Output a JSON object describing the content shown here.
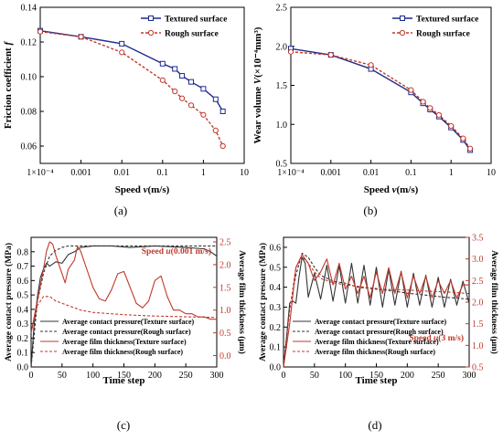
{
  "colors": {
    "textured": "#1f2a8c",
    "rough": "#c0392b",
    "pressure_texture": "#333333",
    "pressure_rough": "#333333",
    "film": "#c0392b"
  },
  "chart_data": [
    {
      "panel": "(a)",
      "type": "line",
      "xlabel_pre": "Speed ",
      "xlabel_var": "v",
      "xlabel_post": "(m/s)",
      "ylabel_pre": "Friction coefficient ",
      "ylabel_var": "f",
      "xscale": "log",
      "xlim": [
        0.0001,
        10
      ],
      "ylim": [
        0.05,
        0.14
      ],
      "xticks": [
        0.0001,
        0.001,
        0.01,
        0.1,
        1,
        10
      ],
      "xticklabels": [
        "1×10⁻⁴",
        "0.001",
        "0.01",
        "0.1",
        "1",
        "10"
      ],
      "yticks": [
        0.06,
        0.08,
        0.1,
        0.12,
        0.14
      ],
      "yticklabels": [
        "0.06",
        "0.08",
        "0.10",
        "0.12",
        "0.14"
      ],
      "legend_position": "top-right",
      "series": [
        {
          "name": "Textured surface",
          "style": "solid",
          "marker": "square",
          "x": [
            0.0001,
            0.001,
            0.01,
            0.1,
            0.2,
            0.3,
            0.5,
            1,
            2,
            3
          ],
          "y": [
            0.1265,
            0.123,
            0.119,
            0.1075,
            0.1045,
            0.1005,
            0.097,
            0.093,
            0.087,
            0.08
          ]
        },
        {
          "name": "Rough surface",
          "style": "dashed",
          "marker": "circle",
          "x": [
            0.0001,
            0.001,
            0.01,
            0.1,
            0.2,
            0.3,
            0.5,
            1,
            2,
            3
          ],
          "y": [
            0.126,
            0.123,
            0.114,
            0.098,
            0.0915,
            0.0875,
            0.0835,
            0.078,
            0.069,
            0.06
          ]
        }
      ]
    },
    {
      "panel": "(b)",
      "type": "line",
      "xlabel_pre": "Speed  ",
      "xlabel_var": "v",
      "xlabel_post": "(m/s)",
      "ylabel_pre": "Wear volume ",
      "ylabel_var": "V",
      "ylabel_post": "(×10⁻⁴mm³)",
      "xscale": "log",
      "xlim": [
        0.0001,
        10
      ],
      "ylim": [
        0.5,
        2.5
      ],
      "xticks": [
        0.0001,
        0.001,
        0.01,
        0.1,
        1,
        10
      ],
      "xticklabels": [
        "1×10⁻⁴",
        "0.001",
        "0.01",
        "0.1",
        "1",
        "10"
      ],
      "yticks": [
        0.5,
        1.0,
        1.5,
        2.0,
        2.5
      ],
      "yticklabels": [
        "0.5",
        "1.0",
        "1.5",
        "2.0",
        "2.5"
      ],
      "legend_position": "top-right",
      "series": [
        {
          "name": "Textured surface",
          "style": "solid",
          "marker": "square",
          "x": [
            0.0001,
            0.001,
            0.01,
            0.1,
            0.2,
            0.3,
            0.5,
            1,
            2,
            3
          ],
          "y": [
            1.97,
            1.89,
            1.71,
            1.41,
            1.27,
            1.19,
            1.1,
            0.96,
            0.8,
            0.67
          ]
        },
        {
          "name": "Rough surface",
          "style": "dashed",
          "marker": "circle",
          "x": [
            0.0001,
            0.001,
            0.01,
            0.1,
            0.2,
            0.3,
            0.5,
            1,
            2,
            3
          ],
          "y": [
            1.93,
            1.89,
            1.76,
            1.44,
            1.29,
            1.21,
            1.12,
            0.98,
            0.82,
            0.69
          ]
        }
      ]
    },
    {
      "panel": "(c)",
      "type": "line",
      "annotation_pre": "Speed ",
      "annotation_var": "u",
      "annotation_post": "(0.001 m/s)",
      "xlabel": "Time step",
      "ylabel": "Average contact pressure (MPa)",
      "ylabel2": "Average film thickness (μm)",
      "xlim": [
        0,
        300
      ],
      "ylim": [
        0,
        0.9
      ],
      "y2lim": [
        -0.25,
        2.6
      ],
      "xticks": [
        0,
        50,
        100,
        150,
        200,
        250,
        300
      ],
      "xticklabels": [
        "0",
        "50",
        "100",
        "150",
        "200",
        "250",
        "300"
      ],
      "yticks": [
        0.0,
        0.1,
        0.2,
        0.3,
        0.4,
        0.5,
        0.6,
        0.7,
        0.8
      ],
      "yticklabels": [
        "0.0",
        "0.1",
        "0.2",
        "0.3",
        "0.4",
        "0.5",
        "0.6",
        "0.7",
        "0.8"
      ],
      "y2ticks": [
        0.0,
        0.5,
        1.0,
        1.5,
        2.0,
        2.5
      ],
      "y2ticklabels": [
        "0.0",
        "0.5",
        "1.0",
        "1.5",
        "2.0",
        "2.5"
      ],
      "legend_position": "bottom-center",
      "series": [
        {
          "name": "Average contact pressure(Texture surface)",
          "axis": "left",
          "style": "solid",
          "color": "#333333",
          "x": [
            0,
            5,
            10,
            15,
            20,
            25,
            30,
            40,
            50,
            60,
            70,
            80,
            100,
            130,
            160,
            200,
            250,
            280,
            290,
            300
          ],
          "y": [
            0.0,
            0.3,
            0.48,
            0.62,
            0.68,
            0.72,
            0.7,
            0.73,
            0.72,
            0.78,
            0.8,
            0.83,
            0.84,
            0.84,
            0.83,
            0.84,
            0.83,
            0.82,
            0.8,
            0.77
          ]
        },
        {
          "name": "Average contact pressure(Rough surface)",
          "axis": "left",
          "style": "dashed",
          "color": "#333333",
          "x": [
            0,
            10,
            20,
            30,
            40,
            50,
            60,
            80,
            100,
            150,
            200,
            250,
            300
          ],
          "y": [
            0.0,
            0.45,
            0.65,
            0.77,
            0.81,
            0.83,
            0.84,
            0.84,
            0.84,
            0.84,
            0.84,
            0.84,
            0.84
          ]
        },
        {
          "name": "Average film thickness(Texture surface)",
          "axis": "right",
          "style": "solid",
          "color": "#c0392b",
          "x": [
            0,
            10,
            20,
            25,
            30,
            35,
            40,
            50,
            55,
            60,
            70,
            75,
            80,
            90,
            100,
            110,
            120,
            130,
            140,
            150,
            160,
            170,
            180,
            190,
            200,
            210,
            220,
            230,
            240,
            250,
            260,
            270,
            280,
            290,
            300
          ],
          "y": [
            0.5,
            1.2,
            1.9,
            2.3,
            2.5,
            2.45,
            2.2,
            1.8,
            1.6,
            1.9,
            2.1,
            2.4,
            2.3,
            1.9,
            1.5,
            1.25,
            1.2,
            1.45,
            1.8,
            1.85,
            1.5,
            1.15,
            1.05,
            1.2,
            1.65,
            1.75,
            1.3,
            1.0,
            1.0,
            0.92,
            0.92,
            0.85,
            0.85,
            0.8,
            0.8
          ]
        },
        {
          "name": "Average film thickness(Rough surface)",
          "axis": "right",
          "style": "dashed",
          "color": "#c0392b",
          "x": [
            0,
            10,
            20,
            30,
            40,
            60,
            80,
            100,
            120,
            150,
            180,
            200,
            230,
            260,
            300
          ],
          "y": [
            0.5,
            1.1,
            1.3,
            1.3,
            1.2,
            1.1,
            1.0,
            0.95,
            0.93,
            0.9,
            0.88,
            0.87,
            0.86,
            0.85,
            0.84
          ]
        }
      ]
    },
    {
      "panel": "(d)",
      "type": "line",
      "annotation_pre": "Speed ",
      "annotation_var": "u",
      "annotation_post": "(3 m/s)",
      "xlabel": "Time step",
      "ylabel": "Average contact pressure (MPa)",
      "ylabel2": "Average film thickness (μm)",
      "xlim": [
        0,
        300
      ],
      "ylim": [
        0,
        0.65
      ],
      "y2lim": [
        0.5,
        3.5
      ],
      "xticks": [
        0,
        50,
        100,
        150,
        200,
        250,
        300
      ],
      "xticklabels": [
        "0",
        "50",
        "100",
        "150",
        "200",
        "250",
        "300"
      ],
      "yticks": [
        0.0,
        0.1,
        0.2,
        0.3,
        0.4,
        0.5,
        0.6
      ],
      "yticklabels": [
        "0.0",
        "0.1",
        "0.2",
        "0.3",
        "0.4",
        "0.5",
        "0.6"
      ],
      "y2ticks": [
        0.5,
        1.0,
        1.5,
        2.0,
        2.5,
        3.0,
        3.5
      ],
      "y2ticklabels": [
        "0.5",
        "1.0",
        "1.5",
        "2.0",
        "2.5",
        "3.0",
        "3.5"
      ],
      "legend_position": "bottom-center",
      "series": [
        {
          "name": "Average contact pressure(Texture surface)",
          "axis": "left",
          "style": "solid",
          "color": "#333333",
          "x": [
            0,
            5,
            10,
            15,
            20,
            25,
            30,
            35,
            40,
            50,
            60,
            70,
            80,
            90,
            100,
            110,
            120,
            130,
            140,
            150,
            160,
            170,
            180,
            190,
            200,
            210,
            220,
            230,
            240,
            250,
            260,
            270,
            280,
            290,
            300
          ],
          "y": [
            0.0,
            0.15,
            0.32,
            0.33,
            0.32,
            0.45,
            0.55,
            0.52,
            0.35,
            0.47,
            0.34,
            0.51,
            0.33,
            0.51,
            0.32,
            0.52,
            0.32,
            0.51,
            0.31,
            0.5,
            0.3,
            0.49,
            0.31,
            0.48,
            0.3,
            0.47,
            0.31,
            0.46,
            0.3,
            0.45,
            0.3,
            0.44,
            0.31,
            0.43,
            0.32
          ]
        },
        {
          "name": "Average contact pressure(Rough surface)",
          "axis": "left",
          "style": "dashed",
          "color": "#333333",
          "x": [
            0,
            10,
            20,
            30,
            40,
            50,
            60,
            80,
            100,
            120,
            150,
            180,
            200,
            230,
            260,
            300
          ],
          "y": [
            0.0,
            0.3,
            0.46,
            0.57,
            0.55,
            0.5,
            0.46,
            0.43,
            0.42,
            0.4,
            0.39,
            0.38,
            0.37,
            0.36,
            0.35,
            0.34
          ]
        },
        {
          "name": "Average film thickness(Texture surface)",
          "axis": "right",
          "style": "solid",
          "color": "#c0392b",
          "x": [
            0,
            10,
            20,
            30,
            40,
            50,
            60,
            70,
            80,
            90,
            100,
            110,
            120,
            130,
            140,
            150,
            160,
            170,
            180,
            190,
            200,
            210,
            220,
            230,
            240,
            250,
            260,
            270,
            280,
            290,
            300
          ],
          "y": [
            0.5,
            1.5,
            2.8,
            3.1,
            2.9,
            2.5,
            2.7,
            3.0,
            2.4,
            2.9,
            2.3,
            2.6,
            2.2,
            2.6,
            2.1,
            2.7,
            2.2,
            2.8,
            2.2,
            2.7,
            2.1,
            2.6,
            2.2,
            2.6,
            2.1,
            2.5,
            2.2,
            2.5,
            2.1,
            2.4,
            2.4
          ]
        },
        {
          "name": "Average film thickness(Rough surface)",
          "axis": "right",
          "style": "dashed",
          "color": "#c0392b",
          "x": [
            0,
            10,
            20,
            30,
            40,
            50,
            60,
            80,
            100,
            130,
            160,
            200,
            240,
            270,
            300
          ],
          "y": [
            0.5,
            1.8,
            2.8,
            3.05,
            2.9,
            2.7,
            2.55,
            2.45,
            2.4,
            2.35,
            2.3,
            2.28,
            2.25,
            2.23,
            2.2
          ]
        }
      ]
    }
  ]
}
